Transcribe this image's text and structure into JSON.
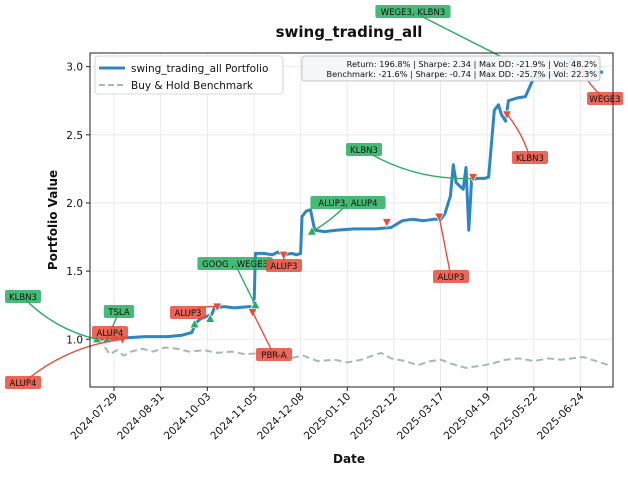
{
  "chart_data": {
    "type": "line",
    "title": "swing_trading_all",
    "xlabel": "Date",
    "ylabel": "Portfolio Value",
    "x_range": [
      "2024-07-12",
      "2025-07-17"
    ],
    "ylim": [
      0.65,
      3.1
    ],
    "grid": true,
    "x_ticks": [
      "2024-07-29",
      "2024-08-31",
      "2024-10-03",
      "2024-11-05",
      "2024-12-08",
      "2025-01-10",
      "2025-02-12",
      "2025-03-17",
      "2025-04-19",
      "2025-05-22",
      "2025-06-24"
    ],
    "y_ticks": [
      1.0,
      1.5,
      2.0,
      2.5,
      3.0
    ],
    "y_tick_labels": [
      "1.0",
      "1.5",
      "2.0",
      "2.5",
      "3.0"
    ],
    "legend": {
      "placement": "top-left",
      "entries": [
        "swing_trading_all Portfolio",
        "Buy & Hold Benchmark"
      ]
    },
    "stats_box": {
      "placement": "top-right",
      "lines": [
        "Return: 196.8% | Sharpe: 2.34 | Max DD: -21.9% | Vol: 48.2%",
        "Benchmark: -21.6% | Sharpe: -0.74 | Max DD: -25.7% | Vol: 22.3%"
      ]
    },
    "colors": {
      "portfolio": "#2e86c1",
      "benchmark": "#a9b7b5",
      "buy": "#27ae60",
      "sell": "#e74c3c"
    },
    "series": [
      {
        "name": "swing_trading_all Portfolio",
        "points": [
          [
            "2024-07-17",
            1.0
          ],
          [
            "2024-07-24",
            1.0
          ],
          [
            "2024-07-31",
            1.01
          ],
          [
            "2024-08-05",
            1.01
          ],
          [
            "2024-08-20",
            1.02
          ],
          [
            "2024-09-05",
            1.02
          ],
          [
            "2024-09-15",
            1.03
          ],
          [
            "2024-09-22",
            1.05
          ],
          [
            "2024-09-25",
            1.12
          ],
          [
            "2024-09-28",
            1.15
          ],
          [
            "2024-10-03",
            1.17
          ],
          [
            "2024-10-06",
            1.18
          ],
          [
            "2024-10-08",
            1.23
          ],
          [
            "2024-10-15",
            1.24
          ],
          [
            "2024-10-22",
            1.23
          ],
          [
            "2024-11-02",
            1.24
          ],
          [
            "2024-11-05",
            1.23
          ],
          [
            "2024-11-06",
            1.63
          ],
          [
            "2024-11-12",
            1.63
          ],
          [
            "2024-11-18",
            1.62
          ],
          [
            "2024-11-22",
            1.64
          ],
          [
            "2024-11-26",
            1.62
          ],
          [
            "2024-12-02",
            1.63
          ],
          [
            "2024-12-05",
            1.62
          ],
          [
            "2024-12-08",
            1.63
          ],
          [
            "2024-12-09",
            1.9
          ],
          [
            "2024-12-12",
            1.94
          ],
          [
            "2024-12-15",
            1.95
          ],
          [
            "2024-12-18",
            1.8
          ],
          [
            "2024-12-25",
            1.79
          ],
          [
            "2025-01-02",
            1.8
          ],
          [
            "2025-01-15",
            1.81
          ],
          [
            "2025-01-30",
            1.81
          ],
          [
            "2025-02-10",
            1.82
          ],
          [
            "2025-02-18",
            1.87
          ],
          [
            "2025-02-25",
            1.88
          ],
          [
            "2025-03-05",
            1.87
          ],
          [
            "2025-03-12",
            1.88
          ],
          [
            "2025-03-17",
            1.88
          ],
          [
            "2025-03-20",
            1.92
          ],
          [
            "2025-03-24",
            2.05
          ],
          [
            "2025-03-26",
            2.28
          ],
          [
            "2025-03-28",
            2.15
          ],
          [
            "2025-03-31",
            2.12
          ],
          [
            "2025-04-02",
            2.1
          ],
          [
            "2025-04-04",
            2.26
          ],
          [
            "2025-04-06",
            1.8
          ],
          [
            "2025-04-08",
            2.17
          ],
          [
            "2025-04-12",
            2.18
          ],
          [
            "2025-04-17",
            2.18
          ],
          [
            "2025-04-20",
            2.19
          ],
          [
            "2025-04-24",
            2.68
          ],
          [
            "2025-04-27",
            2.72
          ],
          [
            "2025-04-29",
            2.65
          ],
          [
            "2025-05-02",
            2.6
          ],
          [
            "2025-05-04",
            2.75
          ],
          [
            "2025-05-10",
            2.77
          ],
          [
            "2025-05-16",
            2.78
          ],
          [
            "2025-05-22",
            2.92
          ],
          [
            "2025-05-28",
            2.93
          ],
          [
            "2025-06-05",
            2.94
          ],
          [
            "2025-06-10",
            2.94
          ],
          [
            "2025-06-14",
            3.0
          ],
          [
            "2025-06-18",
            3.06
          ],
          [
            "2025-06-20",
            2.97
          ],
          [
            "2025-06-24",
            2.96
          ],
          [
            "2025-07-10",
            2.96
          ]
        ]
      },
      {
        "name": "Buy & Hold Benchmark",
        "points": [
          [
            "2024-07-17",
            1.0
          ],
          [
            "2024-07-22",
            0.95
          ],
          [
            "2024-07-26",
            0.89
          ],
          [
            "2024-07-31",
            0.92
          ],
          [
            "2024-08-05",
            0.88
          ],
          [
            "2024-08-10",
            0.91
          ],
          [
            "2024-08-18",
            0.93
          ],
          [
            "2024-08-26",
            0.91
          ],
          [
            "2024-09-03",
            0.94
          ],
          [
            "2024-09-12",
            0.93
          ],
          [
            "2024-09-20",
            0.91
          ],
          [
            "2024-10-01",
            0.92
          ],
          [
            "2024-10-10",
            0.9
          ],
          [
            "2024-10-20",
            0.91
          ],
          [
            "2024-10-30",
            0.89
          ],
          [
            "2024-11-10",
            0.9
          ],
          [
            "2024-11-20",
            0.88
          ],
          [
            "2024-11-30",
            0.86
          ],
          [
            "2024-12-10",
            0.88
          ],
          [
            "2024-12-20",
            0.84
          ],
          [
            "2025-01-01",
            0.85
          ],
          [
            "2025-01-10",
            0.83
          ],
          [
            "2025-01-20",
            0.85
          ],
          [
            "2025-01-28",
            0.88
          ],
          [
            "2025-02-03",
            0.9
          ],
          [
            "2025-02-10",
            0.86
          ],
          [
            "2025-02-20",
            0.84
          ],
          [
            "2025-03-01",
            0.81
          ],
          [
            "2025-03-10",
            0.84
          ],
          [
            "2025-03-17",
            0.85
          ],
          [
            "2025-03-25",
            0.82
          ],
          [
            "2025-04-04",
            0.79
          ],
          [
            "2025-04-10",
            0.8
          ],
          [
            "2025-04-17",
            0.81
          ],
          [
            "2025-04-25",
            0.83
          ],
          [
            "2025-05-02",
            0.85
          ],
          [
            "2025-05-12",
            0.86
          ],
          [
            "2025-05-22",
            0.84
          ],
          [
            "2025-06-01",
            0.86
          ],
          [
            "2025-06-10",
            0.85
          ],
          [
            "2025-06-18",
            0.86
          ],
          [
            "2025-06-26",
            0.87
          ],
          [
            "2025-07-05",
            0.84
          ],
          [
            "2025-07-14",
            0.81
          ]
        ]
      }
    ],
    "trades": [
      {
        "date": "2024-07-17",
        "value": 1.0,
        "side": "buy"
      },
      {
        "date": "2024-07-24",
        "value": 1.0,
        "side": "buy"
      },
      {
        "date": "2024-08-04",
        "value": 1.0,
        "side": "sell"
      },
      {
        "date": "2024-09-24",
        "value": 1.11,
        "side": "buy"
      },
      {
        "date": "2024-10-05",
        "value": 1.15,
        "side": "buy"
      },
      {
        "date": "2024-10-10",
        "value": 1.24,
        "side": "sell"
      },
      {
        "date": "2024-11-04",
        "value": 1.2,
        "side": "sell"
      },
      {
        "date": "2024-11-06",
        "value": 1.25,
        "side": "buy"
      },
      {
        "date": "2024-11-10",
        "value": 1.56,
        "side": "buy"
      },
      {
        "date": "2024-11-26",
        "value": 1.62,
        "side": "sell"
      },
      {
        "date": "2024-12-16",
        "value": 1.79,
        "side": "buy"
      },
      {
        "date": "2025-02-07",
        "value": 1.86,
        "side": "sell"
      },
      {
        "date": "2025-03-16",
        "value": 1.9,
        "side": "sell"
      },
      {
        "date": "2025-04-09",
        "value": 2.19,
        "side": "sell"
      },
      {
        "date": "2025-05-03",
        "value": 2.65,
        "side": "sell"
      },
      {
        "date": "2025-05-26",
        "value": 2.93,
        "side": "buy"
      },
      {
        "date": "2025-06-25",
        "value": 2.97,
        "side": "sell"
      }
    ],
    "annotations": [
      {
        "text": "WEGE3, KLBN3",
        "side": "buy",
        "date": "2025-05-26",
        "value": 2.93
      },
      {
        "text": "WEGE3",
        "side": "sell",
        "date": "2025-06-25",
        "value": 2.97
      },
      {
        "text": "KLBN3",
        "side": "sell",
        "date": "2025-05-03",
        "value": 2.65
      },
      {
        "text": "KLBN3",
        "side": "buy",
        "date": "2025-04-08",
        "value": 2.18
      },
      {
        "text": "ALUP3, ALUP4",
        "side": "buy",
        "date": "2024-12-16",
        "value": 1.79
      },
      {
        "text": "ALUP3",
        "side": "sell",
        "date": "2025-03-16",
        "value": 1.9
      },
      {
        "text": "GOOG , WEGE3",
        "side": "buy",
        "date": "2024-11-06",
        "value": 1.25
      },
      {
        "text": "ALUP3",
        "side": "sell",
        "date": "2024-11-26",
        "value": 1.62
      },
      {
        "text": "ALUP3",
        "side": "sell",
        "date": "2024-10-10",
        "value": 1.24
      },
      {
        "text": "PBR-A",
        "side": "sell",
        "date": "2024-11-04",
        "value": 1.2
      },
      {
        "text": "TSLA",
        "side": "buy",
        "date": "2024-07-24",
        "value": 1.0
      },
      {
        "text": "ALUP4",
        "side": "sell",
        "date": "2024-07-31",
        "value": 1.0
      },
      {
        "text": "KLBN3",
        "side": "buy",
        "date": "2024-07-17",
        "value": 1.0
      },
      {
        "text": "ALUP4",
        "side": "sell",
        "date": "2024-08-04",
        "value": 1.0
      }
    ]
  }
}
